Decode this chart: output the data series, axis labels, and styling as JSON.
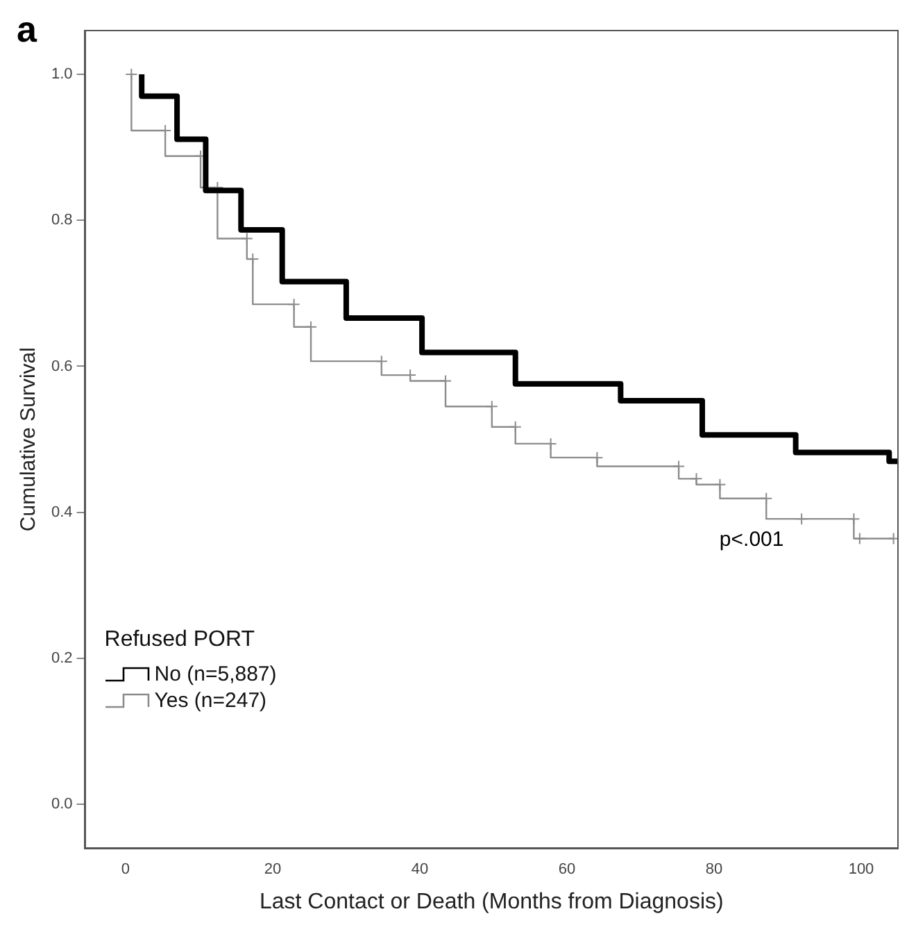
{
  "chart_data": {
    "type": "step",
    "title": "a",
    "xlabel": "Last Contact or Death (Months from Diagnosis)",
    "ylabel": "Cumulative Survival",
    "legend_title": "Refused PORT",
    "legend": "bottom left",
    "grid": false,
    "xlim": [
      -5.5,
      105
    ],
    "xticks": [
      0,
      20,
      40,
      60,
      80,
      100
    ],
    "ylim": [
      -0.06,
      1.06
    ],
    "yticks": [
      {
        "value": 0,
        "label": "0.0"
      },
      0.2,
      0.4,
      0.6,
      0.8,
      {
        "value": 1,
        "label": "1.0"
      }
    ],
    "annotations": [
      "p<.001"
    ],
    "series": [
      {
        "name": "No (n=5,887)",
        "color": "#000000",
        "x": [
          2.2,
          7,
          10.9,
          15.7,
          21.3,
          30,
          40.3,
          53,
          67.3,
          78.4,
          91.1,
          103.8,
          105
        ],
        "values": [
          1.0,
          0.97,
          0.911,
          0.841,
          0.787,
          0.716,
          0.666,
          0.619,
          0.576,
          0.553,
          0.506,
          0.482,
          0.47
        ]
      },
      {
        "name": "Yes (n=247)",
        "color": "#8c8c8c",
        "marker": "cross",
        "x": [
          0.8,
          5.4,
          10.2,
          12.5,
          16.5,
          17.3,
          22.9,
          25.2,
          34.8,
          38.7,
          43.5,
          49.8,
          53,
          57.8,
          64.1,
          75.2,
          77.6,
          80.8,
          87.1,
          91.9,
          99,
          99.8,
          104.4
        ],
        "values": [
          1.0,
          0.923,
          0.888,
          0.845,
          0.775,
          0.747,
          0.685,
          0.654,
          0.607,
          0.588,
          0.58,
          0.545,
          0.517,
          0.494,
          0.475,
          0.463,
          0.446,
          0.438,
          0.419,
          0.391,
          0.391,
          0.364,
          0.364
        ]
      }
    ]
  }
}
